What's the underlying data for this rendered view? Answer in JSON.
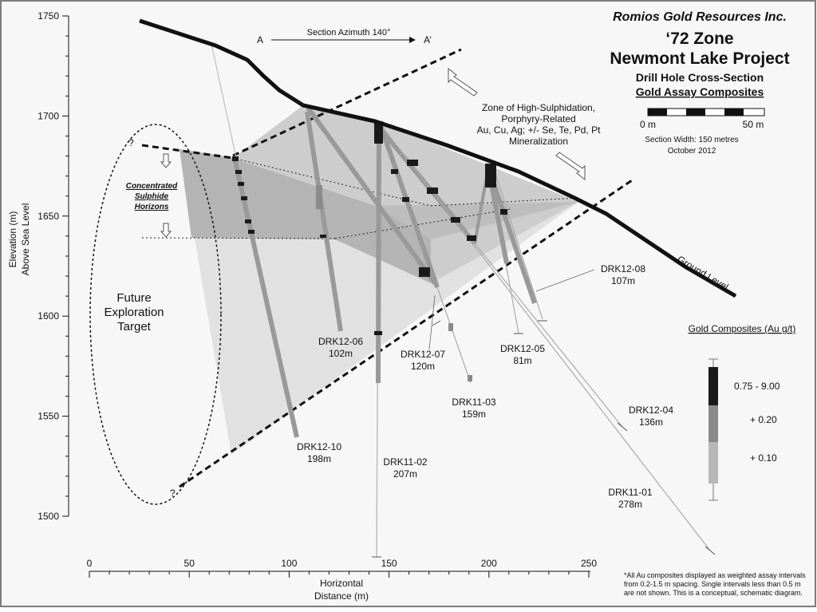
{
  "header": {
    "company": "Romios Gold Resources Inc.",
    "zone": "‘72 Zone",
    "project": "Newmont Lake Project",
    "section_type": "Drill Hole Cross-Section",
    "composites_title": "Gold Assay Composites",
    "scale_left": "0 m",
    "scale_right": "50 m",
    "section_width": "Section Width: 150 metres",
    "date": "October  2012"
  },
  "azimuth": {
    "left": "A",
    "label": "Section Azimuth 140°",
    "right": "A’"
  },
  "axes": {
    "y_title_line1": "Elevation (m)",
    "y_title_line2": "Above Sea Level",
    "y_ticks": [
      "1750",
      "1700",
      "1650",
      "1600",
      "1550",
      "1500"
    ],
    "x_title_line1": "Horizontal",
    "x_title_line2": "Distance (m)",
    "x_ticks": [
      "0",
      "50",
      "100",
      "150",
      "200",
      "250"
    ]
  },
  "annotations": {
    "zone_line1": "Zone of High-Sulphidation,",
    "zone_line2": "Porphyry-Related",
    "zone_line3": "Au, Cu, Ag; +/- Se, Te, Pd, Pt",
    "zone_line4": "Mineralization",
    "sulphide_line1": "Concentrated",
    "sulphide_line2": "Sulphide",
    "sulphide_line3": "Horizons",
    "future_line1": "Future",
    "future_line2": "Exploration",
    "future_line3": "Target",
    "question": "?",
    "ground_level": "Ground Level"
  },
  "holes": [
    {
      "name": "DRK12-10",
      "depth": "198m"
    },
    {
      "name": "DRK12-06",
      "depth": "102m"
    },
    {
      "name": "DRK11-02",
      "depth": "207m"
    },
    {
      "name": "DRK12-07",
      "depth": "120m"
    },
    {
      "name": "DRK11-03",
      "depth": "159m"
    },
    {
      "name": "DRK12-05",
      "depth": "81m"
    },
    {
      "name": "DRK12-08",
      "depth": "107m"
    },
    {
      "name": "DRK12-04",
      "depth": "136m"
    },
    {
      "name": "DRK11-01",
      "depth": "278m"
    }
  ],
  "legend": {
    "title": "Gold Composites (Au g/t)",
    "high": "0.75 - 9.00",
    "mid": "+ 0.20",
    "low": "+ 0.10"
  },
  "footnote": {
    "line1": "*All Au composites displayed as weighted assay intervals",
    "line2": "from 0.2-1.5 m spacing.  Single intervals less than 0.5 m",
    "line3": "are not shown.  This is a conceptual, schematic diagram."
  },
  "colors": {
    "composite_high": "#1a1a1a",
    "composite_mid": "#8a8a8a",
    "composite_low": "#b8b8b8",
    "target_zone": "#dddddd",
    "sulphide_band": "#b0b0b0"
  }
}
